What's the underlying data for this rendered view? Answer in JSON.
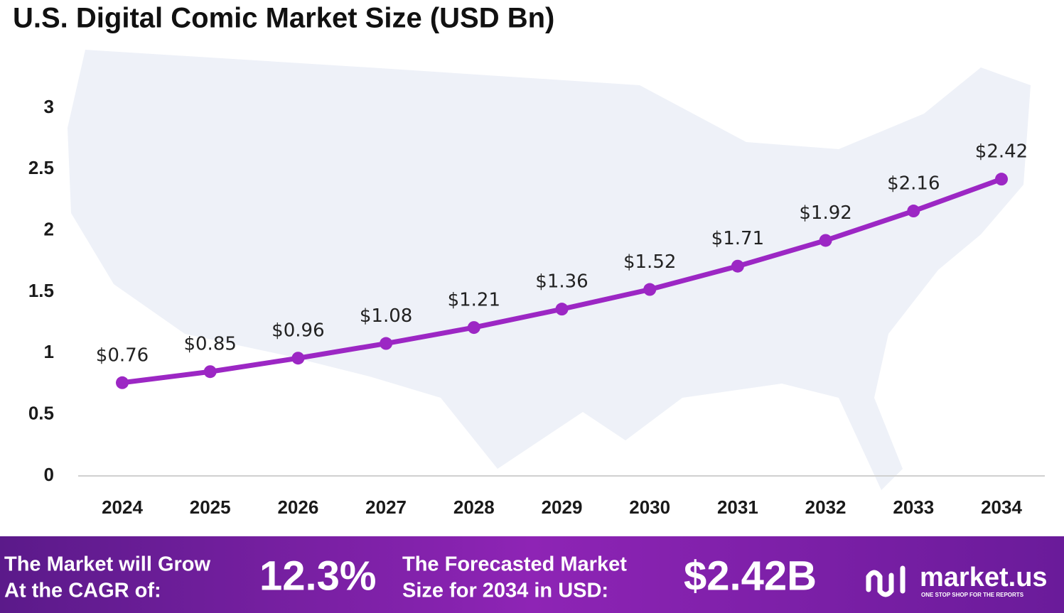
{
  "chart_data": {
    "type": "line",
    "title": "U.S. Digital Comic Market Size (USD Bn)",
    "categories": [
      "2024",
      "2025",
      "2026",
      "2027",
      "2028",
      "2029",
      "2030",
      "2031",
      "2032",
      "2033",
      "2034"
    ],
    "series": [
      {
        "color": "#9c27c4",
        "values": [
          0.76,
          0.85,
          0.96,
          1.08,
          1.21,
          1.36,
          1.52,
          1.71,
          1.92,
          2.16,
          2.42
        ],
        "value_labels": [
          "$0.76",
          "$0.85",
          "$0.96",
          "$1.08",
          "$1.21",
          "$1.36",
          "$1.52",
          "$1.71",
          "$1.92",
          "$2.16",
          "$2.42"
        ]
      }
    ],
    "ylim": [
      0,
      3
    ],
    "yticks": [
      0,
      0.5,
      1,
      1.5,
      2,
      2.5,
      3
    ],
    "grid": false
  },
  "footer": {
    "cagr_text": [
      "The Market will Grow",
      "At the CAGR of:"
    ],
    "cagr_value": "12.3%",
    "forecast_text": [
      "The Forecasted Market",
      "Size for 2034 in USD:"
    ],
    "forecast_value": "$2.42B",
    "logo": "market.us",
    "tagline": "ONE STOP SHOP FOR THE REPORTS"
  }
}
